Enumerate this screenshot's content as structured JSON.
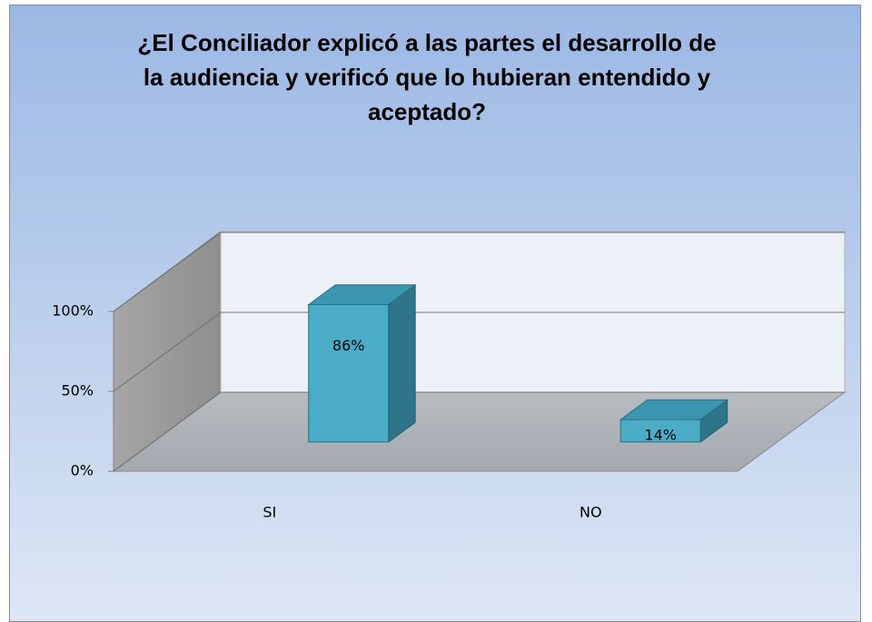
{
  "chart_data": {
    "type": "bar3d",
    "title": "¿El Conciliador explicó a las partes el desarrollo de la audiencia y verificó que lo hubieran entendido y aceptado?",
    "categories": [
      "SI",
      "NO"
    ],
    "values": [
      86,
      14
    ],
    "value_labels": [
      "86%",
      "14%"
    ],
    "color": "#4bacc6",
    "ylim": [
      0,
      100
    ],
    "yticks": [
      {
        "value": 0,
        "label": "0%"
      },
      {
        "value": 50,
        "label": "50%"
      },
      {
        "value": 100,
        "label": "100%"
      }
    ],
    "grid": true
  }
}
